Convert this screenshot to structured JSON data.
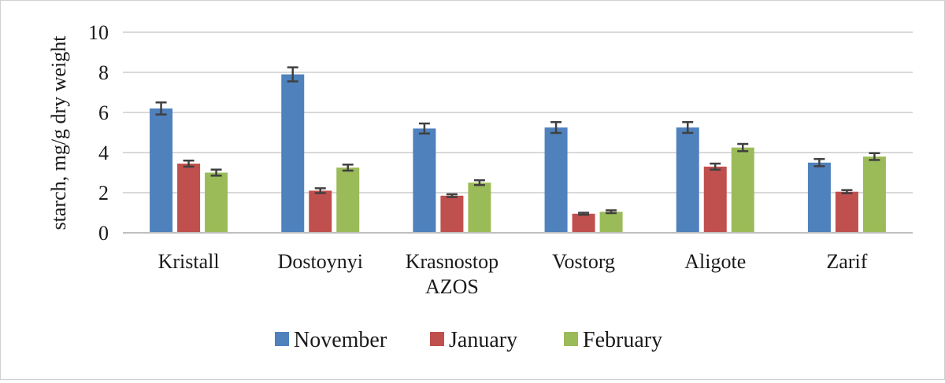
{
  "chart_data": {
    "type": "bar",
    "title": "",
    "xlabel": "",
    "ylabel": "starch, mg/g dry weight",
    "ylim": [
      0,
      10
    ],
    "yticks": [
      "0",
      "2",
      "4",
      "6",
      "8",
      "10"
    ],
    "grid": true,
    "legend_position": "bottom",
    "categories": [
      [
        "Kristall"
      ],
      [
        "Dostoynyi"
      ],
      [
        "Krasnostop",
        "AZOS"
      ],
      [
        "Vostorg"
      ],
      [
        "Aligote"
      ],
      [
        "Zarif"
      ]
    ],
    "series": [
      {
        "name": "November",
        "color": "#4f81bd",
        "values": [
          6.2,
          7.9,
          5.2,
          5.25,
          5.25,
          3.5
        ],
        "errors": [
          0.3,
          0.35,
          0.25,
          0.27,
          0.27,
          0.18
        ]
      },
      {
        "name": "January",
        "color": "#c0504d",
        "values": [
          3.45,
          2.1,
          1.85,
          0.95,
          3.3,
          2.05
        ],
        "errors": [
          0.15,
          0.12,
          0.07,
          0.05,
          0.15,
          0.08
        ]
      },
      {
        "name": "February",
        "color": "#9bbb59",
        "values": [
          3.0,
          3.25,
          2.5,
          1.05,
          4.25,
          3.8
        ],
        "errors": [
          0.15,
          0.15,
          0.12,
          0.07,
          0.18,
          0.17
        ]
      }
    ]
  }
}
